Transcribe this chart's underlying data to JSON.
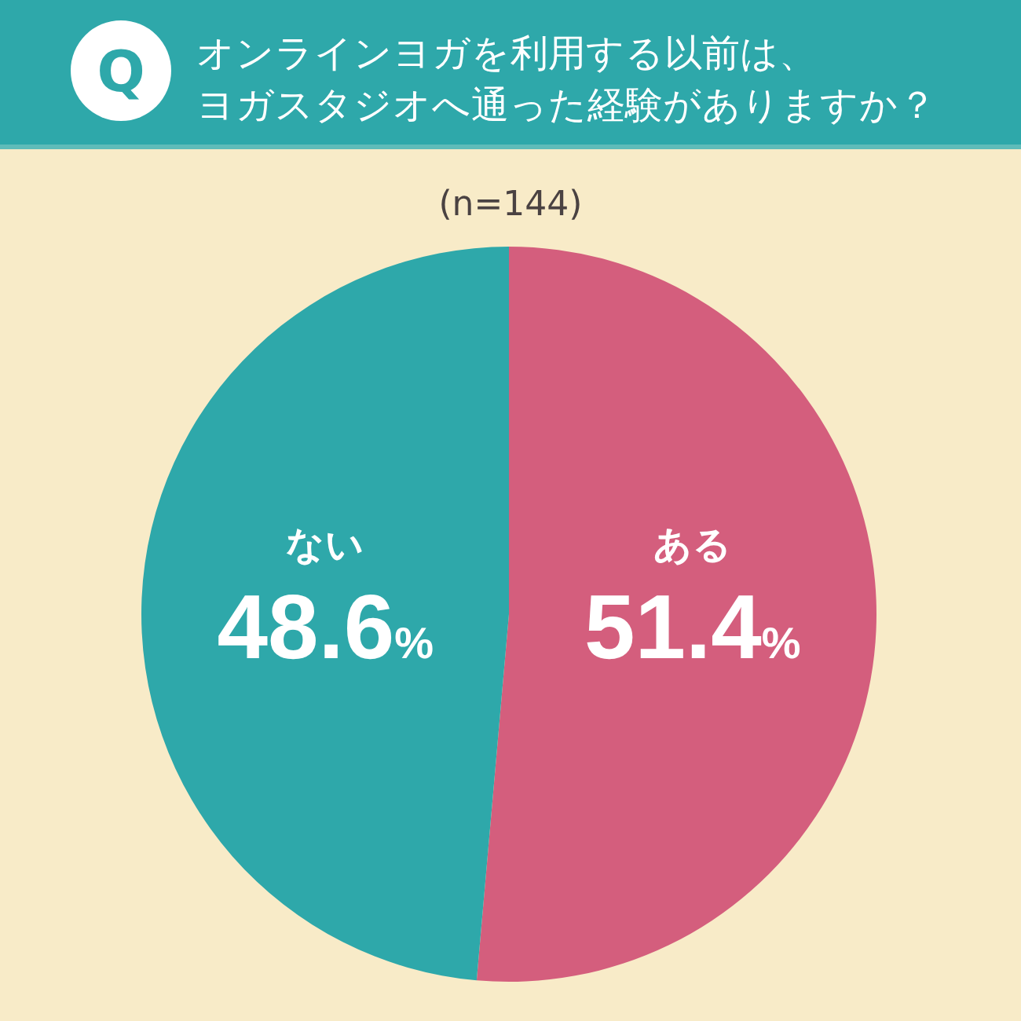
{
  "chart_data": {
    "type": "pie",
    "title": "オンラインヨガを利用する以前は、ヨガスタジオへ通った経験がありますか？",
    "subtitle": "(n=144)",
    "annotations": [
      "Q"
    ],
    "categories": [
      "ある",
      "ない"
    ],
    "values": [
      51.4,
      48.6
    ],
    "colors": [
      "#d45e7d",
      "#2ea8aa"
    ],
    "value_labels": [
      "51.4%",
      "48.6%"
    ]
  }
}
